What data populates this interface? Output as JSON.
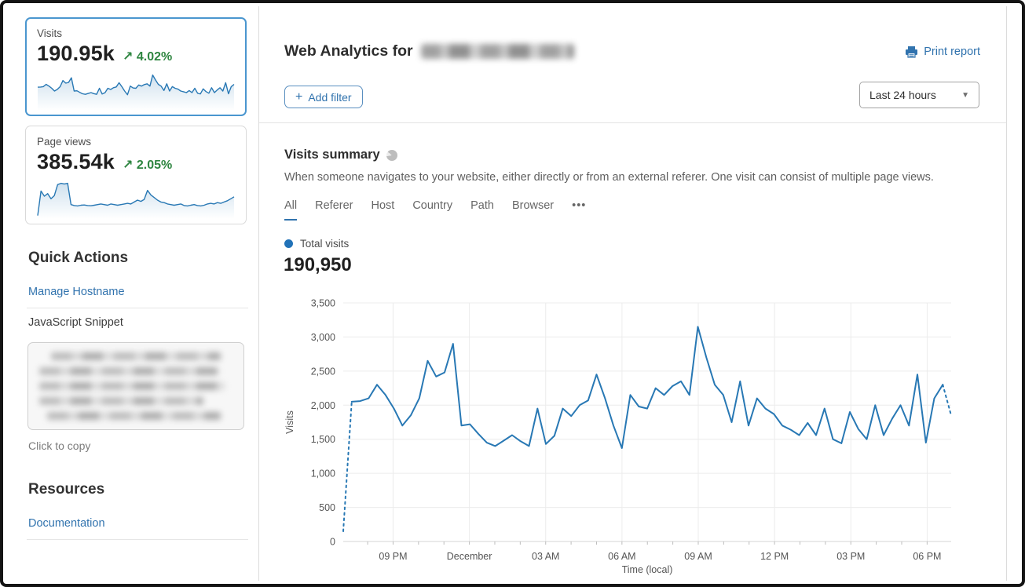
{
  "colors": {
    "accent_blue": "#3173ae",
    "chart_line": "#2878b4",
    "trend_green": "#2e8540",
    "selected_card_border": "#4a96cf"
  },
  "sidebar": {
    "visits_card": {
      "label": "Visits",
      "value": "190.95k",
      "trend_arrow": "↗",
      "trend": "4.02%",
      "selected": true,
      "sparkline": [
        2050,
        2060,
        2100,
        2300,
        2150,
        1950,
        1700,
        1850,
        2100,
        2650,
        2420,
        2480,
        2900,
        1700,
        1720,
        1580,
        1450,
        1400,
        1480,
        1560,
        1470,
        1400,
        1950,
        1430,
        1550,
        1950,
        1840,
        2000,
        2070,
        2450,
        2100,
        1700,
        1370,
        2150,
        1980,
        1950,
        2250,
        2150,
        2280,
        2350,
        2150,
        3150,
        2700,
        2300,
        2150,
        1750,
        2350,
        1700,
        2100,
        1950,
        1870,
        1700,
        1640,
        1560,
        1740,
        1560,
        1950,
        1500,
        1440,
        1900,
        1650,
        1500,
        2000,
        1560,
        1800,
        2000,
        1700,
        2450,
        1450,
        2100,
        2300
      ]
    },
    "pageviews_card": {
      "label": "Page views",
      "value": "385.54k",
      "trend_arrow": "↗",
      "trend": "2.05%",
      "selected": false,
      "sparkline": [
        200,
        2100,
        1700,
        1900,
        1500,
        1750,
        2600,
        2700,
        2650,
        2700,
        1050,
        980,
        950,
        1000,
        1020,
        980,
        960,
        1000,
        1050,
        1100,
        1050,
        1000,
        1100,
        1050,
        1000,
        1050,
        1100,
        1150,
        1100,
        1250,
        1400,
        1300,
        1450,
        2150,
        1800,
        1600,
        1400,
        1250,
        1200,
        1100,
        1050,
        1000,
        1050,
        1100,
        980,
        950,
        1000,
        1050,
        980,
        950,
        1000,
        1100,
        1150,
        1100,
        1200,
        1150,
        1250,
        1350,
        1500,
        1650
      ]
    },
    "quick_actions_title": "Quick Actions",
    "manage_hostname_label": "Manage Hostname",
    "js_snippet_label": "JavaScript Snippet",
    "snippet_redacted": true,
    "click_to_copy_label": "Click to copy",
    "resources_title": "Resources",
    "documentation_label": "Documentation"
  },
  "header": {
    "title": "Web Analytics for",
    "domain_redacted": true,
    "print_report_label": "Print report"
  },
  "filters": {
    "add_filter_plus": "+",
    "add_filter_label": "Add filter",
    "time_range_value": "Last 24 hours",
    "time_caret": "▼"
  },
  "summary": {
    "title": "Visits summary",
    "description": "When someone navigates to your website, either directly or from an external referer. One visit can consist of multiple page views.",
    "tabs": [
      "All",
      "Referer",
      "Host",
      "Country",
      "Path",
      "Browser",
      "•••"
    ],
    "active_tab": "All",
    "legend_label": "Total visits",
    "total_value": "190,950"
  },
  "chart_data": {
    "type": "line",
    "title": "Total visits",
    "xlabel": "Time (local)",
    "ylabel": "Visits",
    "ylim": [
      0,
      3500
    ],
    "y_ticks": [
      0,
      500,
      1000,
      1500,
      2000,
      2500,
      3000,
      3500
    ],
    "grid": true,
    "legend_position": "top-left",
    "line_color": "#2878b4",
    "dashed_head_segments": 1,
    "dashed_tail_segments": 1,
    "x_ticks": [
      {
        "label": "09 PM",
        "pos": 0.082
      },
      {
        "label": "December",
        "pos": 0.2075
      },
      {
        "label": "03 AM",
        "pos": 0.333
      },
      {
        "label": "06 AM",
        "pos": 0.4585
      },
      {
        "label": "09 AM",
        "pos": 0.584
      },
      {
        "label": "12 PM",
        "pos": 0.7095
      },
      {
        "label": "03 PM",
        "pos": 0.835
      },
      {
        "label": "06 PM",
        "pos": 0.9605
      }
    ],
    "minor_tick_step": 0.04183,
    "values": [
      150,
      2050,
      2060,
      2100,
      2300,
      2150,
      1950,
      1700,
      1850,
      2100,
      2650,
      2420,
      2480,
      2900,
      1700,
      1720,
      1580,
      1450,
      1400,
      1480,
      1560,
      1470,
      1400,
      1950,
      1430,
      1550,
      1950,
      1840,
      2000,
      2070,
      2450,
      2100,
      1700,
      1370,
      2150,
      1980,
      1950,
      2250,
      2150,
      2280,
      2350,
      2150,
      3150,
      2700,
      2300,
      2150,
      1750,
      2350,
      1700,
      2100,
      1950,
      1870,
      1700,
      1640,
      1560,
      1740,
      1560,
      1950,
      1500,
      1440,
      1900,
      1650,
      1500,
      2000,
      1560,
      1800,
      2000,
      1700,
      2450,
      1450,
      2100,
      2300,
      1850
    ]
  }
}
